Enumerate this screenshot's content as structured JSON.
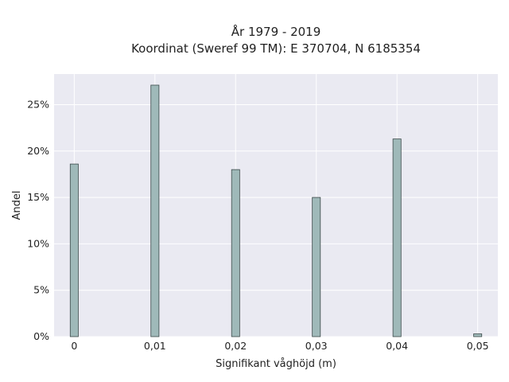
{
  "chart_data": {
    "type": "bar",
    "title": [
      "År 1979 - 2019",
      "Koordinat (Sweref 99 TM): E 370704, N 6185354"
    ],
    "xlabel": "Signifikant våghöjd (m)",
    "ylabel": "Andel",
    "xlim": [
      -0.0025,
      0.0525
    ],
    "ylim": [
      0,
      28.3
    ],
    "x_ticks": [
      0,
      0.01,
      0.02,
      0.03,
      0.04,
      0.05
    ],
    "x_tick_labels": [
      "0",
      "0,01",
      "0,02",
      "0,03",
      "0,04",
      "0,05"
    ],
    "y_ticks": [
      0,
      5,
      10,
      15,
      20,
      25
    ],
    "y_tick_labels": [
      "0%",
      "5%",
      "10%",
      "15%",
      "20%",
      "25%"
    ],
    "grid": true,
    "bar_width": 0.001,
    "bars": [
      {
        "x": 0.0,
        "value": 18.6
      },
      {
        "x": 0.01,
        "value": 27.1
      },
      {
        "x": 0.02,
        "value": 18.0
      },
      {
        "x": 0.03,
        "value": 15.0
      },
      {
        "x": 0.04,
        "value": 21.3
      },
      {
        "x": 0.05,
        "value": 0.3
      }
    ],
    "colors": {
      "bar_fill": "#9fb9b9",
      "bar_edge": "#3c4a4a",
      "background": "#eaeaf2",
      "grid": "#ffffff"
    }
  }
}
